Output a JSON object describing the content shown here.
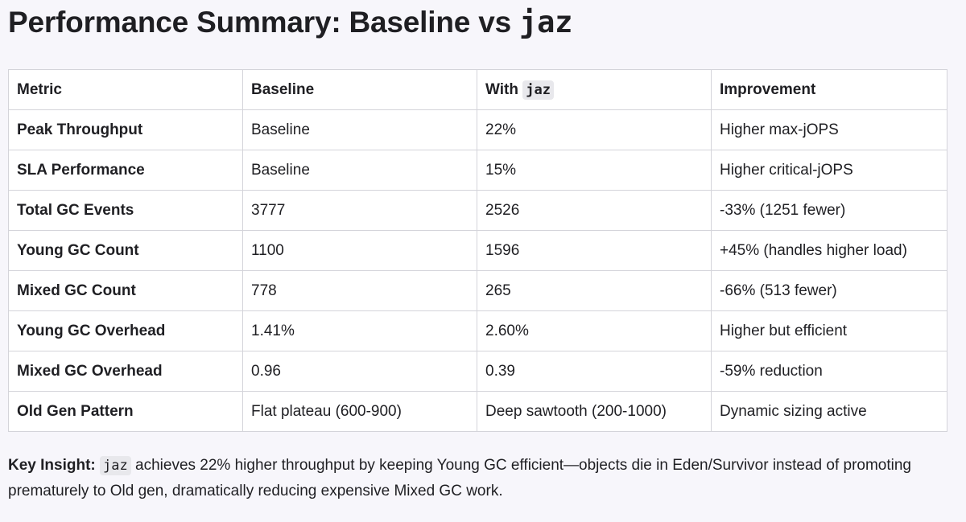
{
  "title": {
    "prefix": "Performance Summary: Baseline vs ",
    "code": "jaz"
  },
  "table": {
    "headers": {
      "metric": "Metric",
      "baseline": "Baseline",
      "with_prefix": "With ",
      "with_code": "jaz",
      "improvement": "Improvement"
    },
    "rows": [
      {
        "metric": "Peak Throughput",
        "baseline": "Baseline",
        "with_jaz": "22%",
        "improvement": "Higher max-jOPS"
      },
      {
        "metric": "SLA Performance",
        "baseline": "Baseline",
        "with_jaz": "15%",
        "improvement": "Higher critical-jOPS"
      },
      {
        "metric": "Total GC Events",
        "baseline": "3777",
        "with_jaz": "2526",
        "improvement": "-33% (1251 fewer)"
      },
      {
        "metric": "Young GC Count",
        "baseline": "1100",
        "with_jaz": "1596",
        "improvement": "+45% (handles higher load)"
      },
      {
        "metric": "Mixed GC Count",
        "baseline": "778",
        "with_jaz": "265",
        "improvement": "-66% (513 fewer)"
      },
      {
        "metric": "Young GC Overhead",
        "baseline": "1.41%",
        "with_jaz": "2.60%",
        "improvement": "Higher but efficient"
      },
      {
        "metric": "Mixed GC Overhead",
        "baseline": "0.96",
        "with_jaz": "0.39",
        "improvement": "-59% reduction"
      },
      {
        "metric": "Old Gen Pattern",
        "baseline": "Flat plateau (600-900)",
        "with_jaz": "Deep sawtooth (200-1000)",
        "improvement": "Dynamic sizing active"
      }
    ]
  },
  "insight": {
    "label": "Key Insight:",
    "code": "jaz",
    "text": "achieves 22% higher throughput by keeping Young GC efficient—objects die in Eden/Survivor instead of promoting prematurely to Old gen, dramatically reducing expensive Mixed GC work."
  }
}
